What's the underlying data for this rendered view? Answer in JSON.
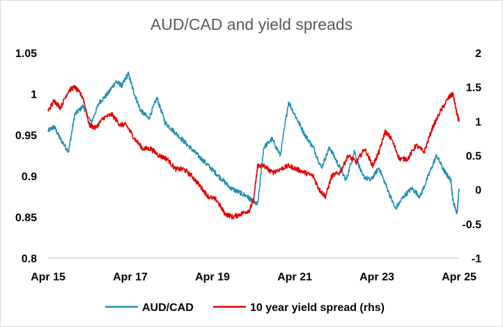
{
  "chart_data": {
    "type": "line",
    "title": "AUD/CAD and yield spreads",
    "x_ticks": [
      "Apr 15",
      "Apr 17",
      "Apr 19",
      "Apr 21",
      "Apr 23",
      "Apr 25"
    ],
    "y_left": {
      "min": 0.8,
      "max": 1.05,
      "ticks": [
        "1.05",
        "1",
        "0.95",
        "0.9",
        "0.85",
        "0.8"
      ]
    },
    "y_right": {
      "min": -1,
      "max": 2,
      "ticks": [
        "2",
        "1.5",
        "1",
        "0.5",
        "0",
        "-0.5",
        "-1"
      ]
    },
    "legend": {
      "position": "bottom"
    },
    "series": [
      {
        "name": "AUD/CAD",
        "axis": "left",
        "color": "#1f8fb3",
        "x": [
          2015.25,
          2015.4,
          2015.55,
          2015.75,
          2015.9,
          2016.1,
          2016.3,
          2016.5,
          2016.7,
          2016.9,
          2017.05,
          2017.2,
          2017.35,
          2017.5,
          2017.7,
          2017.9,
          2018.1,
          2018.3,
          2018.5,
          2018.7,
          2018.9,
          2019.1,
          2019.3,
          2019.5,
          2019.7,
          2019.9,
          2020.1,
          2020.2,
          2020.35,
          2020.5,
          2020.7,
          2020.9,
          2021.1,
          2021.3,
          2021.5,
          2021.7,
          2021.9,
          2022.1,
          2022.3,
          2022.5,
          2022.7,
          2022.9,
          2023.1,
          2023.3,
          2023.5,
          2023.7,
          2023.9,
          2024.1,
          2024.3,
          2024.5,
          2024.7,
          2024.9,
          2025.05,
          2025.1,
          2025.2,
          2025.25
        ],
        "y": [
          0.955,
          0.96,
          0.945,
          0.93,
          0.975,
          0.985,
          0.965,
          0.99,
          1.0,
          1.015,
          1.01,
          1.025,
          1.0,
          0.98,
          0.97,
          0.995,
          0.965,
          0.955,
          0.945,
          0.935,
          0.925,
          0.915,
          0.905,
          0.895,
          0.885,
          0.88,
          0.875,
          0.87,
          0.865,
          0.935,
          0.945,
          0.925,
          0.99,
          0.97,
          0.95,
          0.935,
          0.91,
          0.935,
          0.915,
          0.895,
          0.93,
          0.9,
          0.895,
          0.91,
          0.885,
          0.86,
          0.875,
          0.885,
          0.875,
          0.9,
          0.925,
          0.905,
          0.895,
          0.87,
          0.855,
          0.885
        ]
      },
      {
        "name": "10 year yield spread (rhs)",
        "axis": "right",
        "color": "#e00000",
        "x": [
          2015.25,
          2015.4,
          2015.55,
          2015.75,
          2015.9,
          2016.1,
          2016.25,
          2016.4,
          2016.6,
          2016.8,
          2017.0,
          2017.15,
          2017.35,
          2017.55,
          2017.75,
          2017.95,
          2018.15,
          2018.35,
          2018.55,
          2018.75,
          2018.95,
          2019.15,
          2019.35,
          2019.55,
          2019.75,
          2019.95,
          2020.15,
          2020.25,
          2020.35,
          2020.5,
          2020.7,
          2020.9,
          2021.1,
          2021.3,
          2021.5,
          2021.7,
          2021.85,
          2022.0,
          2022.15,
          2022.35,
          2022.55,
          2022.75,
          2022.95,
          2023.15,
          2023.3,
          2023.45,
          2023.6,
          2023.8,
          2024.0,
          2024.2,
          2024.4,
          2024.6,
          2024.8,
          2025.0,
          2025.1,
          2025.2,
          2025.25
        ],
        "y": [
          1.15,
          1.3,
          1.2,
          1.45,
          1.5,
          1.35,
          0.95,
          0.9,
          1.05,
          1.1,
          0.95,
          0.95,
          0.75,
          0.6,
          0.6,
          0.5,
          0.45,
          0.3,
          0.3,
          0.2,
          0.05,
          -0.1,
          -0.15,
          -0.35,
          -0.4,
          -0.35,
          -0.3,
          -0.15,
          0.35,
          0.35,
          0.25,
          0.3,
          0.35,
          0.3,
          0.25,
          0.2,
          0.0,
          -0.1,
          0.2,
          0.25,
          0.5,
          0.4,
          0.6,
          0.35,
          0.55,
          0.85,
          0.75,
          0.45,
          0.45,
          0.65,
          0.55,
          0.9,
          1.15,
          1.35,
          1.4,
          1.1,
          1.0
        ]
      }
    ]
  }
}
